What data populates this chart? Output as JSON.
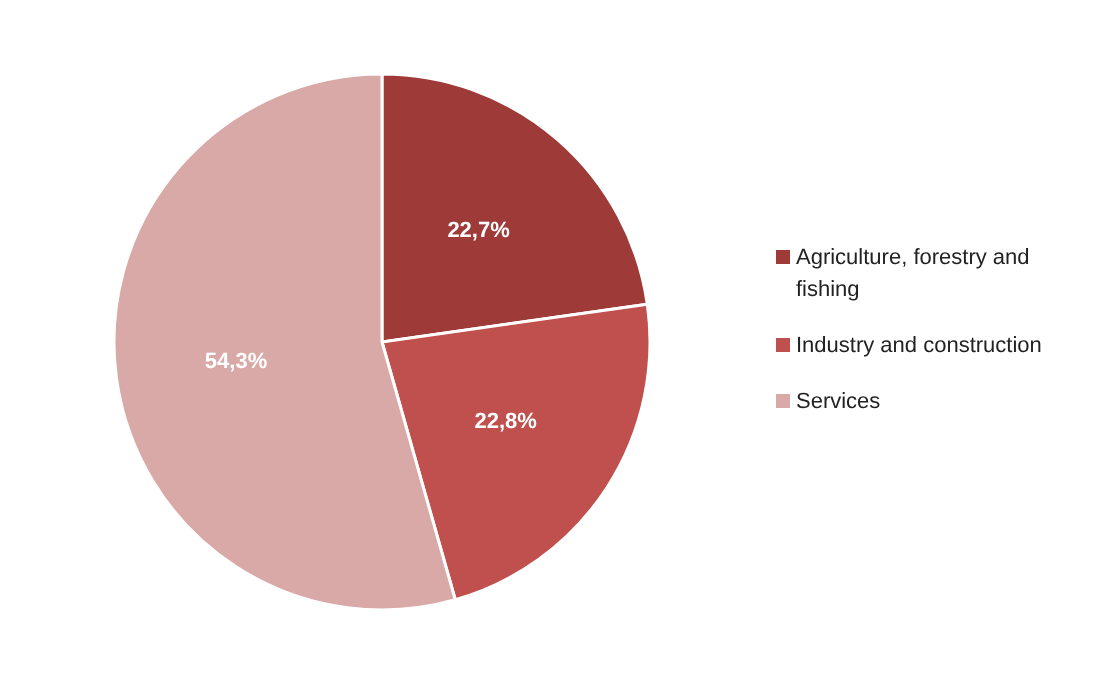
{
  "chart_data": {
    "type": "pie",
    "categories": [
      "Agriculture, forestry and fishing",
      "Industry and construction",
      "Services"
    ],
    "values": [
      22.7,
      22.8,
      54.3
    ],
    "colors": [
      "#9e3b39",
      "#c0504d",
      "#d9a9a8"
    ],
    "value_labels": [
      "22,7%",
      "22,8%",
      "54,3%"
    ],
    "legend": "right"
  }
}
